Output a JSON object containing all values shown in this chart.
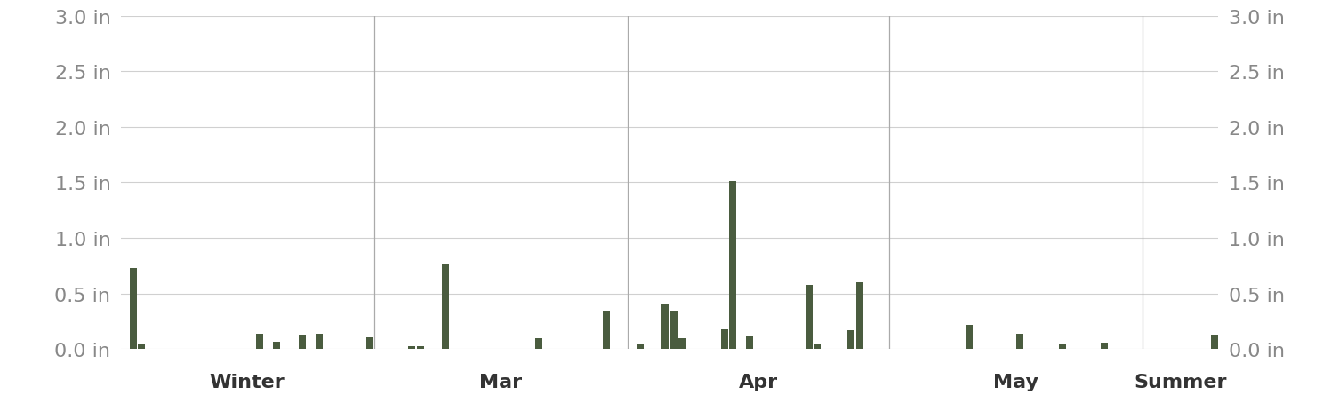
{
  "bar_color": "#4a5c3f",
  "background_color": "#ffffff",
  "grid_color": "#d0d0d0",
  "text_color": "#888888",
  "label_color": "#333333",
  "ylim": [
    0,
    3.0
  ],
  "yticks": [
    0.0,
    0.5,
    1.0,
    1.5,
    2.0,
    2.5,
    3.0
  ],
  "ytick_labels": [
    "0.0 in",
    "0.5 in",
    "1.0 in",
    "1.5 in",
    "2.0 in",
    "2.5 in",
    "3.0 in"
  ],
  "section_labels": [
    "Winter",
    "Mar",
    "Apr",
    "May",
    "Summer"
  ],
  "precip": [
    0.0,
    0.73,
    0.05,
    0.0,
    0.0,
    0.0,
    0.0,
    0.0,
    0.0,
    0.0,
    0.0,
    0.0,
    0.0,
    0.0,
    0.0,
    0.0,
    0.14,
    0.0,
    0.07,
    0.0,
    0.0,
    0.13,
    0.0,
    0.14,
    0.0,
    0.0,
    0.0,
    0.0,
    0.0,
    0.11,
    0.0,
    0.0,
    0.0,
    0.0,
    0.03,
    0.03,
    0.0,
    0.0,
    0.77,
    0.0,
    0.0,
    0.0,
    0.0,
    0.0,
    0.0,
    0.0,
    0.0,
    0.0,
    0.0,
    0.1,
    0.0,
    0.0,
    0.0,
    0.0,
    0.0,
    0.0,
    0.0,
    0.35,
    0.0,
    0.0,
    0.0,
    0.05,
    0.0,
    0.0,
    0.4,
    0.35,
    0.1,
    0.0,
    0.0,
    0.0,
    0.0,
    0.18,
    1.51,
    0.0,
    0.12,
    0.0,
    0.0,
    0.0,
    0.0,
    0.0,
    0.0,
    0.58,
    0.05,
    0.0,
    0.0,
    0.0,
    0.17,
    0.6,
    0.0,
    0.0,
    0.0,
    0.0,
    0.0,
    0.0,
    0.0,
    0.0,
    0.0,
    0.0,
    0.0,
    0.0,
    0.22,
    0.0,
    0.0,
    0.0,
    0.0,
    0.0,
    0.14,
    0.0,
    0.0,
    0.0,
    0.0,
    0.05,
    0.0,
    0.0,
    0.0,
    0.0,
    0.06,
    0.0,
    0.0,
    0.0,
    0.0,
    0.0,
    0.0,
    0.0,
    0.0,
    0.0,
    0.0,
    0.0,
    0.0,
    0.13
  ],
  "section_boundaries": [
    0,
    30,
    60,
    91,
    121,
    130
  ],
  "n_total": 130,
  "ytick_fontsize": 16,
  "label_fontsize": 16
}
